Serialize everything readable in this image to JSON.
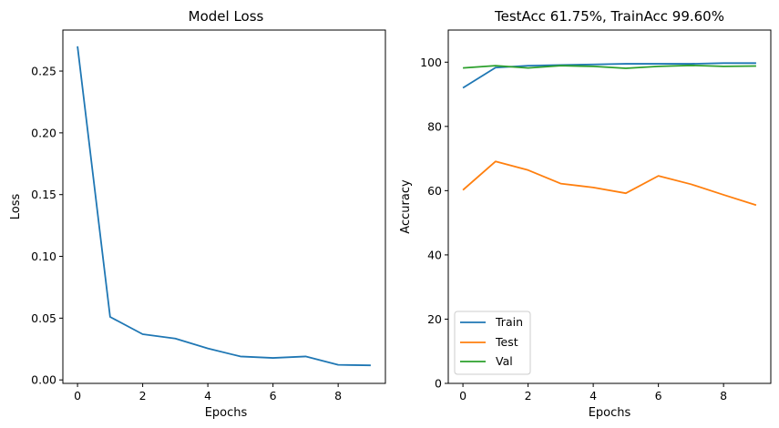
{
  "chart_data": [
    {
      "type": "line",
      "title": "Model Loss",
      "xlabel": "Epochs",
      "ylabel": "Loss",
      "xlim": [
        -0.45,
        9.45
      ],
      "ylim": [
        -0.0028,
        0.2832
      ],
      "xticks": [
        "0",
        "2",
        "4",
        "6",
        "8"
      ],
      "yticks": [
        "0.00",
        "0.05",
        "0.10",
        "0.15",
        "0.20",
        "0.25"
      ],
      "grid": false,
      "series": [
        {
          "color": "#1f77b4",
          "x": [
            0,
            1,
            2,
            3,
            4,
            5,
            6,
            7,
            8,
            9
          ],
          "values": [
            0.27,
            0.051,
            0.037,
            0.0335,
            0.0255,
            0.019,
            0.0178,
            0.019,
            0.0122,
            0.0118
          ]
        }
      ]
    },
    {
      "type": "line",
      "title": "TestAcc 61.75%, TrainAcc 99.60%",
      "xlabel": "Epochs",
      "ylabel": "Accuracy",
      "xlim": [
        -0.45,
        9.45
      ],
      "ylim": [
        0,
        110
      ],
      "xticks": [
        "0",
        "2",
        "4",
        "6",
        "8"
      ],
      "yticks": [
        "0",
        "20",
        "40",
        "60",
        "80",
        "100"
      ],
      "grid": false,
      "legend": "lower-left",
      "series": [
        {
          "name": "Train",
          "color": "#1f77b4",
          "x": [
            0,
            1,
            2,
            3,
            4,
            5,
            6,
            7,
            8,
            9
          ],
          "values": [
            92.0,
            98.3,
            98.9,
            99.1,
            99.3,
            99.5,
            99.5,
            99.5,
            99.7,
            99.7
          ]
        },
        {
          "name": "Test",
          "color": "#ff7f0e",
          "x": [
            0,
            1,
            2,
            3,
            4,
            5,
            6,
            7,
            8,
            9
          ],
          "values": [
            60.2,
            69.1,
            66.4,
            62.2,
            61.0,
            59.2,
            64.6,
            62.0,
            58.7,
            55.5
          ]
        },
        {
          "name": "Val",
          "color": "#2ca02c",
          "x": [
            0,
            1,
            2,
            3,
            4,
            5,
            6,
            7,
            8,
            9
          ],
          "values": [
            98.2,
            98.9,
            98.2,
            98.9,
            98.7,
            98.1,
            98.7,
            99.0,
            98.7,
            98.8
          ]
        }
      ]
    }
  ]
}
